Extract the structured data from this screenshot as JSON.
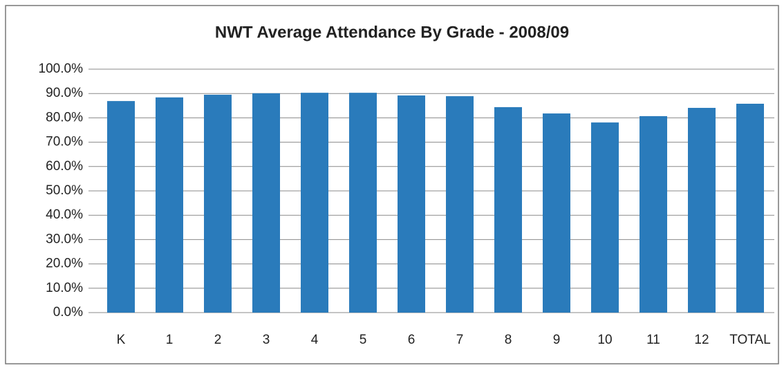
{
  "chart_data": {
    "type": "bar",
    "title": "NWT Average Attendance  By Grade - 2008/09",
    "categories": [
      "K",
      "1",
      "2",
      "3",
      "4",
      "5",
      "6",
      "7",
      "8",
      "9",
      "10",
      "11",
      "12",
      "TOTAL"
    ],
    "values": [
      86.9,
      88.4,
      89.5,
      90.1,
      90.3,
      90.3,
      89.2,
      88.9,
      84.4,
      81.8,
      78.1,
      80.7,
      84.1,
      85.8
    ],
    "color": "#2a7bbb",
    "ylim": [
      0,
      100
    ],
    "yticks": [
      {
        "value": 0,
        "label": "0.0%"
      },
      {
        "value": 10,
        "label": "10.0%"
      },
      {
        "value": 20,
        "label": "20.0%"
      },
      {
        "value": 30,
        "label": "30.0%"
      },
      {
        "value": 40,
        "label": "40.0%"
      },
      {
        "value": 50,
        "label": "50.0%"
      },
      {
        "value": 60,
        "label": "60.0%"
      },
      {
        "value": 70,
        "label": "70.0%"
      },
      {
        "value": 80,
        "label": "80.0%"
      },
      {
        "value": 90,
        "label": "90.0%"
      },
      {
        "value": 100,
        "label": "100.0%"
      }
    ],
    "grid": true
  }
}
